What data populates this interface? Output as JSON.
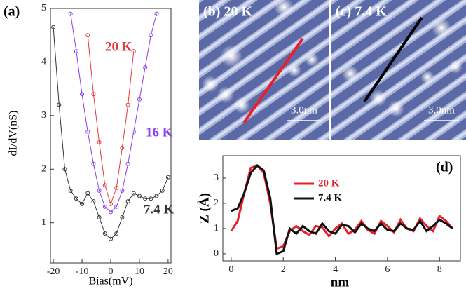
{
  "chart_data": [
    {
      "type": "line",
      "panel_label": "(a)",
      "x_label": "Bias(mV)",
      "y_label": "dI/dV(nS)",
      "x": [
        -20,
        -18,
        -16,
        -14,
        -12,
        -10,
        -8,
        -6,
        -4,
        -2,
        0,
        2,
        4,
        6,
        8,
        10,
        12,
        14,
        16,
        18,
        20
      ],
      "series": [
        {
          "name": "20 K",
          "color": "#e8383d",
          "values": [
            null,
            null,
            null,
            null,
            null,
            null,
            4.5,
            3.4,
            2.5,
            1.7,
            1.35,
            1.65,
            2.4,
            3.2,
            4.2,
            null,
            null,
            null,
            null,
            null,
            null
          ]
        },
        {
          "name": "16 K",
          "color": "#8a3ff0",
          "values": [
            null,
            null,
            null,
            4.9,
            4.2,
            3.4,
            2.7,
            2.1,
            1.6,
            1.3,
            1.2,
            1.3,
            1.6,
            2.1,
            2.7,
            3.3,
            3.9,
            4.5,
            4.9,
            null,
            null
          ]
        },
        {
          "name": "7.4 K",
          "color": "#333333",
          "values": [
            4.65,
            3.2,
            2.0,
            1.6,
            1.45,
            1.35,
            1.55,
            1.4,
            1.1,
            0.8,
            0.7,
            0.8,
            1.1,
            1.4,
            1.55,
            1.5,
            1.45,
            1.45,
            1.5,
            1.6,
            1.85
          ]
        }
      ],
      "xlim": [
        -21,
        21
      ],
      "ylim": [
        0.25,
        5
      ],
      "xticks": [
        -20,
        -10,
        0,
        10,
        20
      ],
      "yticks": [
        1,
        2,
        3,
        4,
        5
      ],
      "markers": true
    },
    {
      "type": "line",
      "panel_label": "(d)",
      "x_label": "nm",
      "y_label": "Z (Å)",
      "x": [
        0,
        0.25,
        0.5,
        0.75,
        1,
        1.25,
        1.5,
        1.75,
        2,
        2.25,
        2.5,
        2.75,
        3,
        3.25,
        3.5,
        3.75,
        4,
        4.25,
        4.5,
        4.75,
        5,
        5.25,
        5.5,
        5.75,
        6,
        6.25,
        6.5,
        6.75,
        7,
        7.25,
        7.5,
        7.75,
        8,
        8.25,
        8.5
      ],
      "series": [
        {
          "name": "20 K",
          "color": "#e8202a",
          "values": [
            0.9,
            1.3,
            2.4,
            3.4,
            3.5,
            3.2,
            2.0,
            0.2,
            0.3,
            0.9,
            1.1,
            0.9,
            0.75,
            1.1,
            1.05,
            0.7,
            1.0,
            1.2,
            0.8,
            0.95,
            1.3,
            0.95,
            0.8,
            1.3,
            1.1,
            0.85,
            1.35,
            1.0,
            0.9,
            1.4,
            1.1,
            0.9,
            1.5,
            1.3,
            1.0
          ]
        },
        {
          "name": "7.4 K",
          "color": "#111111",
          "values": [
            1.7,
            1.8,
            2.4,
            3.2,
            3.5,
            3.3,
            2.2,
            0.0,
            0.1,
            1.0,
            0.8,
            1.1,
            0.9,
            0.8,
            1.2,
            0.9,
            0.8,
            1.15,
            1.1,
            0.85,
            1.2,
            1.0,
            0.9,
            1.2,
            0.95,
            0.9,
            1.2,
            1.0,
            0.95,
            1.3,
            0.9,
            1.1,
            1.35,
            1.2,
            1.0
          ]
        }
      ],
      "xlim": [
        -0.32,
        8.8
      ],
      "ylim": [
        -0.28,
        3.89
      ],
      "xticks": [
        0,
        2,
        4,
        6,
        8
      ],
      "yticks": [
        0,
        1,
        2,
        3
      ],
      "markers": false,
      "legend": "upper-center"
    }
  ],
  "images": [
    {
      "label": "(b) 20 K",
      "scale_bar": "3.0nm"
    },
    {
      "label": "(c) 7.4 K",
      "scale_bar": "3.0nm"
    }
  ]
}
